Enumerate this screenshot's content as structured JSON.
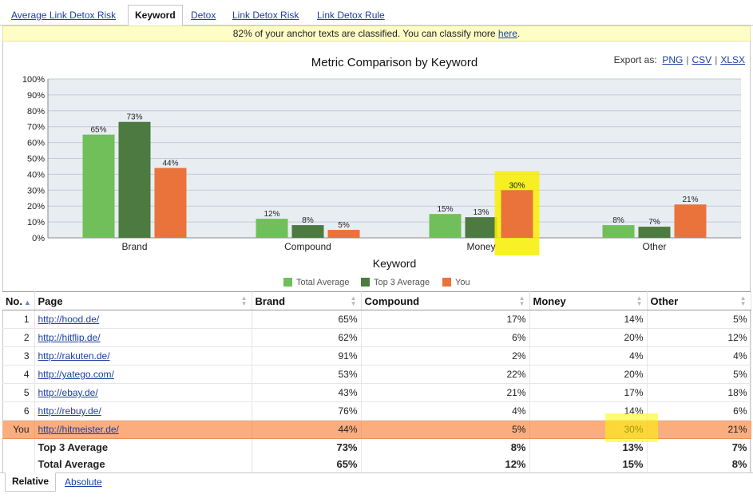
{
  "tabs": [
    {
      "label": "Average Link Detox Risk",
      "active": false
    },
    {
      "label": "Keyword",
      "active": true
    },
    {
      "label": "Detox",
      "active": false
    },
    {
      "label": "Link Detox Risk",
      "active": false
    },
    {
      "label": "Link Detox Rule",
      "active": false
    }
  ],
  "notice": {
    "text": "82% of your anchor texts are classified. You can classify more ",
    "link": "here",
    "end": "."
  },
  "export": {
    "label": "Export as:",
    "formats": [
      "PNG",
      "CSV",
      "XLSX"
    ]
  },
  "chart_data": {
    "type": "bar",
    "title": "Metric Comparison by Keyword",
    "xlabel": "Keyword",
    "ylabel": "",
    "ylim": [
      0,
      100
    ],
    "yticks": [
      0,
      10,
      20,
      30,
      40,
      50,
      60,
      70,
      80,
      90,
      100
    ],
    "categories": [
      "Brand",
      "Compound",
      "Money",
      "Other"
    ],
    "series": [
      {
        "name": "Total Average",
        "color": "#71bf5a",
        "values": [
          65,
          12,
          15,
          8
        ]
      },
      {
        "name": "Top 3 Average",
        "color": "#4c7a40",
        "values": [
          73,
          8,
          13,
          7
        ]
      },
      {
        "name": "You",
        "color": "#e9733a",
        "values": [
          44,
          5,
          30,
          21
        ]
      }
    ],
    "grid": true,
    "legend": "bottom-center",
    "highlight": {
      "category": "Money",
      "series": "You",
      "color": "#f7ef00"
    }
  },
  "table": {
    "columns": [
      "No.",
      "Page",
      "Brand",
      "Compound",
      "Money",
      "Other"
    ],
    "rows": [
      {
        "no": "1",
        "page": "http://hood.de/",
        "brand": "65%",
        "compound": "17%",
        "money": "14%",
        "other": "5%"
      },
      {
        "no": "2",
        "page": "http://hitflip.de/",
        "brand": "62%",
        "compound": "6%",
        "money": "20%",
        "other": "12%"
      },
      {
        "no": "3",
        "page": "http://rakuten.de/",
        "brand": "91%",
        "compound": "2%",
        "money": "4%",
        "other": "4%"
      },
      {
        "no": "4",
        "page": "http://yatego.com/",
        "brand": "53%",
        "compound": "22%",
        "money": "20%",
        "other": "5%"
      },
      {
        "no": "5",
        "page": "http://ebay.de/",
        "brand": "43%",
        "compound": "21%",
        "money": "17%",
        "other": "18%"
      },
      {
        "no": "6",
        "page": "http://rebuy.de/",
        "brand": "76%",
        "compound": "4%",
        "money": "14%",
        "other": "6%"
      }
    ],
    "you": {
      "no": "You",
      "page": "http://hitmeister.de/",
      "brand": "44%",
      "compound": "5%",
      "money": "30%",
      "other": "21%"
    },
    "top3": {
      "label": "Top 3 Average",
      "brand": "73%",
      "compound": "8%",
      "money": "13%",
      "other": "7%"
    },
    "total": {
      "label": "Total Average",
      "brand": "65%",
      "compound": "12%",
      "money": "15%",
      "other": "8%"
    }
  },
  "bottom_tabs": [
    {
      "label": "Relative",
      "active": true
    },
    {
      "label": "Absolute",
      "active": false
    }
  ]
}
